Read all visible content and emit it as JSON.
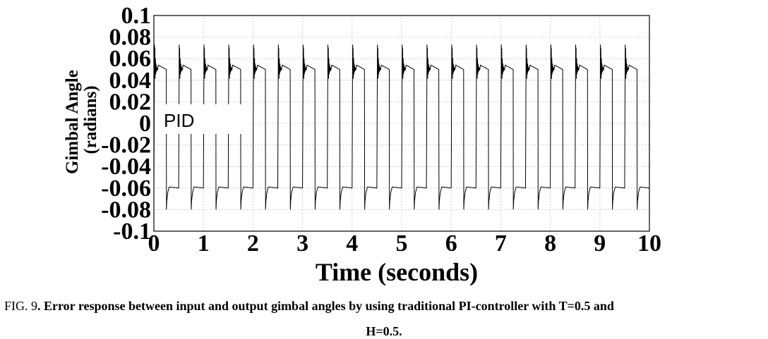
{
  "chart_data": {
    "type": "line",
    "title": "",
    "xlabel": "Time (seconds)",
    "ylabel_lines": [
      "Gimbal Angle",
      "(radians)"
    ],
    "xlim": [
      0,
      10
    ],
    "ylim": [
      -0.1,
      0.1
    ],
    "x_ticks": [
      "0",
      "1",
      "2",
      "3",
      "4",
      "5",
      "6",
      "7",
      "8",
      "9",
      "10"
    ],
    "y_ticks": [
      "0.1",
      "0.08",
      "0.06",
      "0.04",
      "0.02",
      "0",
      "-0.02",
      "-0.04",
      "-0.06",
      "-0.08",
      "-0.1"
    ],
    "grid": true,
    "annotation": "PID",
    "series": [
      {
        "period_s": 0.5,
        "high_level": 0.05,
        "low_level": -0.06,
        "positive_overshoot_peak": 0.083,
        "negative_overshoot_peak": -0.08,
        "rising_edges_s": [
          0.0,
          0.5,
          1.0,
          1.5,
          2.0,
          2.5,
          3.0,
          3.5,
          4.0,
          4.5,
          5.0,
          5.5,
          6.0,
          6.5,
          7.0,
          7.5,
          8.0,
          8.5,
          9.0,
          9.5
        ],
        "falling_edges_s": [
          0.25,
          0.75,
          1.25,
          1.75,
          2.25,
          2.75,
          3.25,
          3.75,
          4.25,
          4.75,
          5.25,
          5.75,
          6.25,
          6.75,
          7.25,
          7.75,
          8.25,
          8.75,
          9.25,
          9.75
        ]
      }
    ]
  },
  "caption": {
    "prefix": "FIG. 9",
    "text_line1": ". Error response between input and output gimbal angles by using traditional PI-controller with T=0.5 and",
    "text_line2": "H=0.5."
  }
}
